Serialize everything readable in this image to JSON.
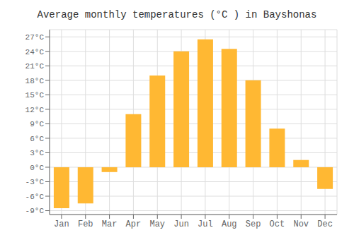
{
  "chart_data": {
    "type": "bar",
    "title": "Average monthly temperatures (°C ) in Bayshonas",
    "categories": [
      "Jan",
      "Feb",
      "Mar",
      "Apr",
      "May",
      "Jun",
      "Jul",
      "Aug",
      "Sep",
      "Oct",
      "Nov",
      "Dec"
    ],
    "values": [
      -8.5,
      -7.5,
      -1.0,
      11.0,
      19.0,
      24.0,
      26.5,
      24.5,
      18.0,
      8.0,
      1.5,
      -4.5
    ],
    "color": "#FFB833",
    "ylim": [
      -9.8,
      28.5
    ],
    "yticks": [
      {
        "value": -9,
        "label": "-9°C"
      },
      {
        "value": -6,
        "label": "-6°C"
      },
      {
        "value": -3,
        "label": "-3°C"
      },
      {
        "value": 0,
        "label": "0°C"
      },
      {
        "value": 3,
        "label": "3°C"
      },
      {
        "value": 6,
        "label": "6°C"
      },
      {
        "value": 9,
        "label": "9°C"
      },
      {
        "value": 12,
        "label": "12°C"
      },
      {
        "value": 15,
        "label": "15°C"
      },
      {
        "value": 18,
        "label": "18°C"
      },
      {
        "value": 21,
        "label": "21°C"
      },
      {
        "value": 24,
        "label": "24°C"
      },
      {
        "value": 27,
        "label": "27°C"
      }
    ],
    "grid": true
  }
}
